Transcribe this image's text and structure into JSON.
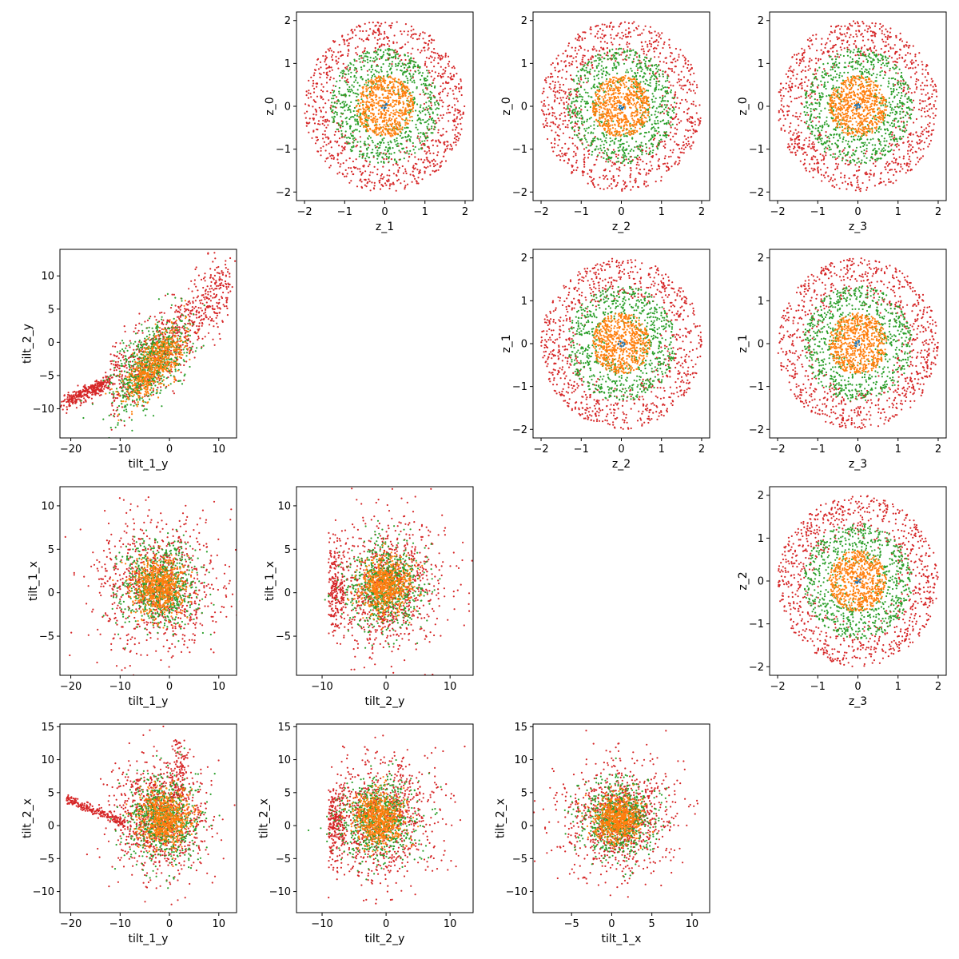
{
  "chart_data": {
    "type": "scatter",
    "layout": "4x4 pair-plot grid (upper triangle of z panels, lower triangle of tilt panels; diagonal and top-left / bottom-right cells empty)",
    "series_colors": [
      "#1f77b4",
      "#ff7f0e",
      "#2ca02c",
      "#d62728"
    ],
    "panels": [
      {
        "id": "z1-z0",
        "row": 0,
        "col": 1,
        "xlabel": "z_1",
        "ylabel": "z_0",
        "xlim": [
          -2.2,
          2.2
        ],
        "ylim": [
          -2.2,
          2.2
        ],
        "xticks": [
          -2,
          -1,
          0,
          1,
          2
        ],
        "yticks": [
          -2,
          -1,
          0,
          1,
          2
        ],
        "distribution": "rings",
        "seed": 11
      },
      {
        "id": "z2-z0",
        "row": 0,
        "col": 2,
        "xlabel": "z_2",
        "ylabel": "z_0",
        "xlim": [
          -2.2,
          2.2
        ],
        "ylim": [
          -2.2,
          2.2
        ],
        "xticks": [
          -2,
          -1,
          0,
          1,
          2
        ],
        "yticks": [
          -2,
          -1,
          0,
          1,
          2
        ],
        "distribution": "rings",
        "seed": 12
      },
      {
        "id": "z3-z0",
        "row": 0,
        "col": 3,
        "xlabel": "z_3",
        "ylabel": "z_0",
        "xlim": [
          -2.2,
          2.2
        ],
        "ylim": [
          -2.2,
          2.2
        ],
        "xticks": [
          -2,
          -1,
          0,
          1,
          2
        ],
        "yticks": [
          -2,
          -1,
          0,
          1,
          2
        ],
        "distribution": "rings",
        "seed": 13
      },
      {
        "id": "tilt1y-tilt2y",
        "row": 1,
        "col": 0,
        "xlabel": "tilt_1_y",
        "ylabel": "tilt_2_y",
        "xlim": [
          -22.2,
          13.6
        ],
        "ylim": [
          -14.4,
          14.0
        ],
        "xticks": [
          -20,
          -10,
          0,
          10
        ],
        "yticks": [
          -10,
          -5,
          0,
          5,
          10
        ],
        "distribution": "tilt_curve",
        "seed": 21
      },
      {
        "id": "z2-z1",
        "row": 1,
        "col": 2,
        "xlabel": "z_2",
        "ylabel": "z_1",
        "xlim": [
          -2.2,
          2.2
        ],
        "ylim": [
          -2.2,
          2.2
        ],
        "xticks": [
          -2,
          -1,
          0,
          1,
          2
        ],
        "yticks": [
          -2,
          -1,
          0,
          1,
          2
        ],
        "distribution": "rings",
        "seed": 22
      },
      {
        "id": "z3-z1",
        "row": 1,
        "col": 3,
        "xlabel": "z_3",
        "ylabel": "z_1",
        "xlim": [
          -2.2,
          2.2
        ],
        "ylim": [
          -2.2,
          2.2
        ],
        "xticks": [
          -2,
          -1,
          0,
          1,
          2
        ],
        "yticks": [
          -2,
          -1,
          0,
          1,
          2
        ],
        "distribution": "rings",
        "seed": 23
      },
      {
        "id": "tilt1y-tilt1x",
        "row": 2,
        "col": 0,
        "xlabel": "tilt_1_y",
        "ylabel": "tilt_1_x",
        "xlim": [
          -22.2,
          13.6
        ],
        "ylim": [
          -9.5,
          12.2
        ],
        "xticks": [
          -20,
          -10,
          0,
          10
        ],
        "yticks": [
          -5,
          0,
          5,
          10
        ],
        "distribution": "blob",
        "center": [
          -2,
          0.8
        ],
        "spread": [
          7.5,
          4.5
        ],
        "seed": 31
      },
      {
        "id": "tilt2y-tilt1x",
        "row": 2,
        "col": 1,
        "xlabel": "tilt_2_y",
        "ylabel": "tilt_1_x",
        "xlim": [
          -14,
          13.6
        ],
        "ylim": [
          -9.5,
          12.2
        ],
        "xticks": [
          -10,
          0,
          10
        ],
        "yticks": [
          -5,
          0,
          5,
          10
        ],
        "distribution": "blob_with_wall",
        "center": [
          0,
          0.8
        ],
        "spread": [
          5.5,
          4.5
        ],
        "wall_x": -9,
        "seed": 32
      },
      {
        "id": "z3-z2",
        "row": 2,
        "col": 3,
        "xlabel": "z_3",
        "ylabel": "z_2",
        "xlim": [
          -2.2,
          2.2
        ],
        "ylim": [
          -2.2,
          2.2
        ],
        "xticks": [
          -2,
          -1,
          0,
          1,
          2
        ],
        "yticks": [
          -2,
          -1,
          0,
          1,
          2
        ],
        "distribution": "rings",
        "seed": 33
      },
      {
        "id": "tilt1y-tilt2x",
        "row": 3,
        "col": 0,
        "xlabel": "tilt_1_y",
        "ylabel": "tilt_2_x",
        "xlim": [
          -22.2,
          13.6
        ],
        "ylim": [
          -13.2,
          15.4
        ],
        "xticks": [
          -20,
          -10,
          0,
          10
        ],
        "yticks": [
          -10,
          -5,
          0,
          5,
          10,
          15
        ],
        "distribution": "tilt_fan",
        "seed": 41
      },
      {
        "id": "tilt2y-tilt2x",
        "row": 3,
        "col": 1,
        "xlabel": "tilt_2_y",
        "ylabel": "tilt_2_x",
        "xlim": [
          -14,
          13.6
        ],
        "ylim": [
          -13.2,
          15.4
        ],
        "xticks": [
          -10,
          0,
          10
        ],
        "yticks": [
          -10,
          -5,
          0,
          5,
          10,
          15
        ],
        "distribution": "blob_with_wall",
        "center": [
          -1,
          1
        ],
        "spread": [
          5.5,
          5.5
        ],
        "wall_x": -9,
        "seed": 42
      },
      {
        "id": "tilt1x-tilt2x",
        "row": 3,
        "col": 2,
        "xlabel": "tilt_1_x",
        "ylabel": "tilt_2_x",
        "xlim": [
          -9.8,
          12.2
        ],
        "ylim": [
          -13.2,
          15.4
        ],
        "xticks": [
          -5,
          0,
          5,
          10
        ],
        "yticks": [
          -10,
          -5,
          0,
          5,
          10,
          15
        ],
        "distribution": "blob",
        "center": [
          0.8,
          1
        ],
        "spread": [
          4.2,
          5.2
        ],
        "seed": 43
      }
    ]
  }
}
